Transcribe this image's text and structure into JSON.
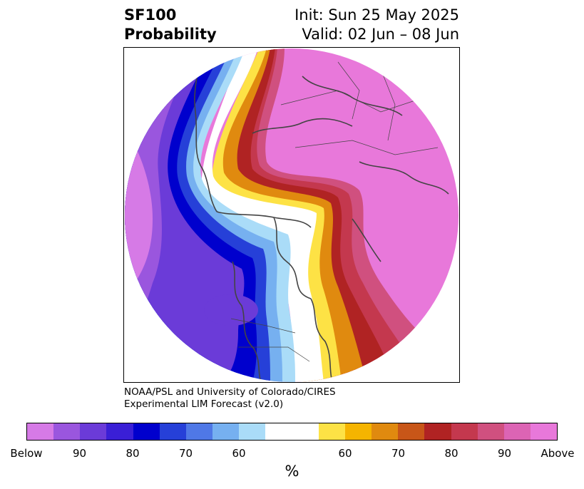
{
  "title": {
    "left_line1": "SF100",
    "left_line2": "Probability",
    "right_line1": "Init: Sun 25 May 2025",
    "right_line2": "Valid: 02 Jun – 08 Jun"
  },
  "credit": {
    "line1": "NOAA/PSL and University of Colorado/CIRES",
    "line2": "Experimental LIM Forecast (v2.0)"
  },
  "colorbar": {
    "colors": [
      "#d67ae6",
      "#9a56de",
      "#6b3bd8",
      "#3a1fd6",
      "#0000cd",
      "#2640d8",
      "#4f78e6",
      "#76b0f0",
      "#aadcf8",
      "#ffffff",
      "#ffffff",
      "#fde245",
      "#f5b400",
      "#e08a0f",
      "#c85618",
      "#b02323",
      "#c4384e",
      "#d0507f",
      "#dc64b4",
      "#e878da"
    ],
    "tick_labels": [
      "Below",
      "90",
      "80",
      "70",
      "60",
      "60",
      "70",
      "80",
      "90",
      "Above"
    ],
    "unit": "%"
  },
  "map": {
    "projection": "north-polar-stereographic",
    "field": "SF100 probability",
    "colors": {
      "purple_light": "#d67ae6",
      "purple_mid": "#9a56de",
      "violet": "#6b3bd8",
      "blue_deep": "#0000cd",
      "blue_mid": "#2640d8",
      "blue_light": "#76b0f0",
      "blue_pale": "#aadcf8",
      "yellow": "#fde245",
      "orange": "#e08a0f",
      "red_dark": "#b02323",
      "crimson": "#c4384e",
      "pink": "#d0507f",
      "magenta": "#e878da",
      "coast": "#444444"
    }
  }
}
